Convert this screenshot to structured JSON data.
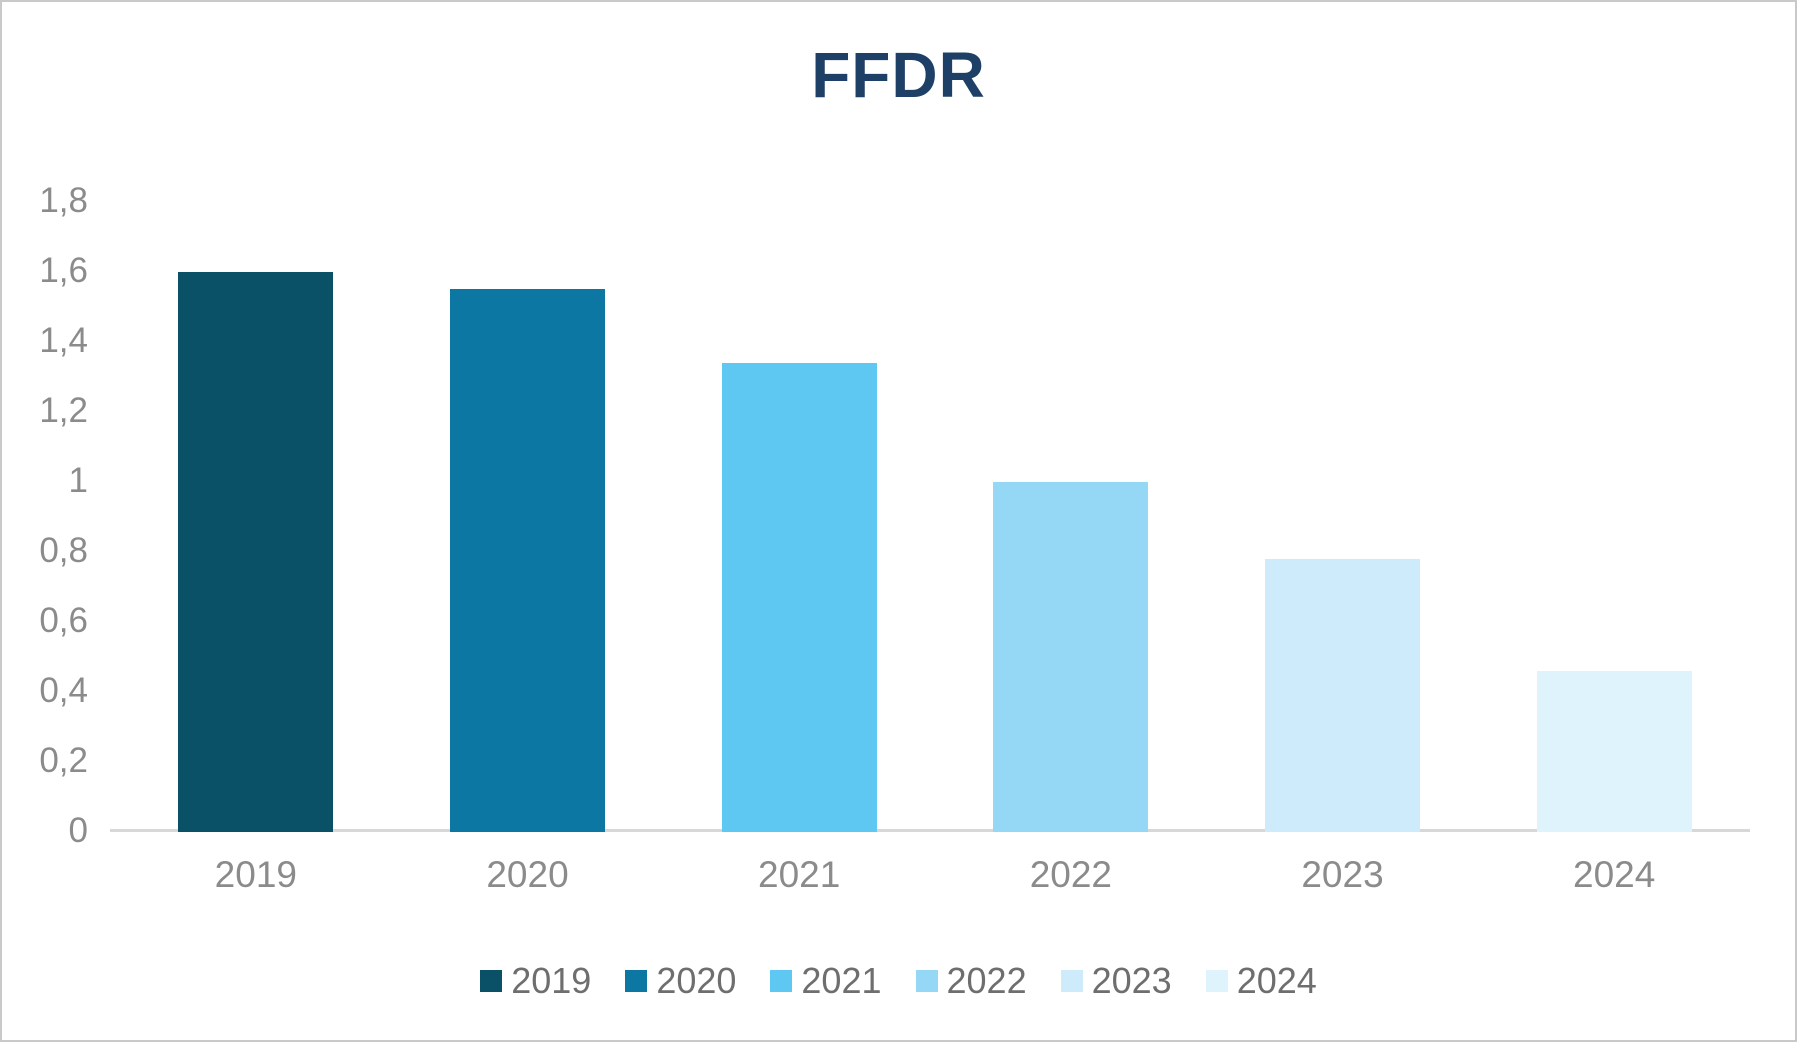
{
  "chart_data": {
    "type": "bar",
    "title": "FFDR",
    "categories": [
      "2019",
      "2020",
      "2021",
      "2022",
      "2023",
      "2024"
    ],
    "values": [
      1.6,
      1.55,
      1.34,
      1.0,
      0.78,
      0.46
    ],
    "bar_colors": [
      "#0a5168",
      "#0d77a4",
      "#5fc8f2",
      "#95d8f5",
      "#cdebfb",
      "#def3fc"
    ],
    "xlabel": "",
    "ylabel": "",
    "ylim": [
      0,
      1.8
    ],
    "ytick_step": 0.2,
    "ytick_labels": [
      "0",
      "0,2",
      "0,4",
      "0,6",
      "0,8",
      "1",
      "1,2",
      "1,4",
      "1,6",
      "1,8"
    ],
    "decimal_separator": ",",
    "grid": false,
    "legend": {
      "position": "bottom",
      "entries": [
        "2019",
        "2020",
        "2021",
        "2022",
        "2023",
        "2024"
      ]
    }
  },
  "style": {
    "title_color": "#1e3f66",
    "axis_label_color": "#8b8b8b",
    "legend_text_color": "#6e6e6e",
    "axis_line_color": "#d8d8d8",
    "background_color": "#ffffff",
    "border_color": "#c9c9c9"
  }
}
